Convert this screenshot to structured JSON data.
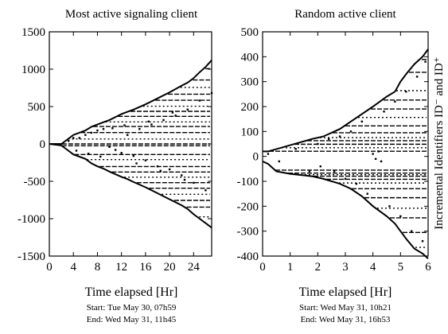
{
  "figure": {
    "right_axis_label": "Incremental Identifiers ID⁻ and ID⁺"
  },
  "chart_data": [
    {
      "type": "scatter",
      "title": "Most active signaling client",
      "xlabel": "Time elapsed [Hr]",
      "ylabel": "",
      "xlim": [
        0,
        27
      ],
      "ylim": [
        -1500,
        1500
      ],
      "xticks": [
        0,
        4,
        8,
        12,
        16,
        20,
        24
      ],
      "yticks": [
        -1500,
        -1000,
        -500,
        0,
        500,
        1000,
        1500
      ],
      "start_text": "Start: Tue May 30, 07h59",
      "end_text": "End: Wed May 31, 11h45",
      "upper_envelope": [
        [
          0,
          0
        ],
        [
          2,
          0
        ],
        [
          3,
          60
        ],
        [
          4,
          120
        ],
        [
          6,
          180
        ],
        [
          7,
          230
        ],
        [
          8,
          260
        ],
        [
          9,
          290
        ],
        [
          10,
          320
        ],
        [
          12,
          400
        ],
        [
          13,
          430
        ],
        [
          14,
          460
        ],
        [
          16,
          530
        ],
        [
          18,
          610
        ],
        [
          20,
          690
        ],
        [
          22,
          780
        ],
        [
          23,
          820
        ],
        [
          24,
          880
        ],
        [
          25,
          960
        ],
        [
          26,
          1030
        ],
        [
          27,
          1120
        ]
      ],
      "lower_envelope": [
        [
          0,
          0
        ],
        [
          2,
          -20
        ],
        [
          3,
          -80
        ],
        [
          4,
          -140
        ],
        [
          6,
          -200
        ],
        [
          7,
          -260
        ],
        [
          8,
          -300
        ],
        [
          9,
          -330
        ],
        [
          10,
          -370
        ],
        [
          12,
          -440
        ],
        [
          13,
          -470
        ],
        [
          14,
          -510
        ],
        [
          16,
          -580
        ],
        [
          18,
          -660
        ],
        [
          20,
          -740
        ],
        [
          22,
          -820
        ],
        [
          23,
          -870
        ],
        [
          24,
          -940
        ],
        [
          25,
          -1000
        ],
        [
          26,
          -1060
        ],
        [
          27,
          -1120
        ]
      ],
      "series": [
        {
          "points": [
            [
              3.2,
              40
            ],
            [
              4,
              80
            ],
            [
              5,
              80
            ],
            [
              6,
              120
            ],
            [
              7,
              150
            ],
            [
              8,
              180
            ],
            [
              9,
              200
            ],
            [
              10,
              -40
            ],
            [
              11,
              -80
            ],
            [
              12,
              -120
            ],
            [
              13,
              120
            ],
            [
              14,
              -160
            ],
            [
              15,
              200
            ],
            [
              16,
              -220
            ],
            [
              17,
              260
            ],
            [
              18,
              -300
            ],
            [
              19,
              320
            ],
            [
              20,
              -340
            ],
            [
              21,
              380
            ],
            [
              22,
              -420
            ],
            [
              23,
              460
            ],
            [
              24,
              -520
            ],
            [
              25,
              580
            ],
            [
              26,
              -620
            ],
            [
              27,
              680
            ],
            [
              4.5,
              -90
            ],
            [
              6.5,
              -130
            ],
            [
              8.5,
              -170
            ],
            [
              10.5,
              210
            ],
            [
              12.5,
              250
            ],
            [
              14.5,
              -260
            ],
            [
              16.5,
              300
            ],
            [
              18.5,
              -360
            ],
            [
              20.5,
              420
            ],
            [
              22.5,
              -480
            ]
          ]
        }
      ]
    },
    {
      "type": "scatter",
      "title": "Random active client",
      "xlabel": "Time elapsed [Hr]",
      "ylabel": "",
      "xlim": [
        0,
        6
      ],
      "ylim": [
        -400,
        500
      ],
      "xticks": [
        0,
        1,
        2,
        3,
        4,
        5,
        6
      ],
      "yticks": [
        -400,
        -300,
        -200,
        -100,
        0,
        100,
        200,
        300,
        400,
        500
      ],
      "start_text": "Start: Wed May 31, 10h21",
      "end_text": "End: Wed May 31, 16h53",
      "upper_envelope": [
        [
          0,
          20
        ],
        [
          0.2,
          20
        ],
        [
          1.8,
          70
        ],
        [
          2.2,
          80
        ],
        [
          2.8,
          110
        ],
        [
          3.2,
          140
        ],
        [
          3.6,
          170
        ],
        [
          4.0,
          200
        ],
        [
          4.5,
          240
        ],
        [
          4.8,
          260
        ],
        [
          5.0,
          300
        ],
        [
          5.2,
          330
        ],
        [
          5.5,
          370
        ],
        [
          5.8,
          400
        ],
        [
          6.0,
          430
        ]
      ],
      "lower_envelope": [
        [
          0,
          -20
        ],
        [
          0.2,
          -30
        ],
        [
          0.5,
          -60
        ],
        [
          1.0,
          -70
        ],
        [
          1.8,
          -80
        ],
        [
          2.2,
          -90
        ],
        [
          2.8,
          -110
        ],
        [
          3.2,
          -130
        ],
        [
          3.6,
          -160
        ],
        [
          4.0,
          -200
        ],
        [
          4.5,
          -240
        ],
        [
          4.8,
          -270
        ],
        [
          5.0,
          -300
        ],
        [
          5.2,
          -330
        ],
        [
          5.5,
          -370
        ],
        [
          5.8,
          -390
        ],
        [
          6.0,
          -410
        ]
      ],
      "series": [
        {
          "points": [
            [
              0.2,
              10
            ],
            [
              0.6,
              -20
            ],
            [
              1.2,
              30
            ],
            [
              1.7,
              -60
            ],
            [
              2.0,
              50
            ],
            [
              2.1,
              -40
            ],
            [
              2.4,
              70
            ],
            [
              2.6,
              -60
            ],
            [
              2.8,
              80
            ],
            [
              3.0,
              -90
            ],
            [
              3.2,
              100
            ],
            [
              3.4,
              -110
            ],
            [
              3.6,
              140
            ],
            [
              3.8,
              -150
            ],
            [
              4.0,
              10
            ],
            [
              4.1,
              -10
            ],
            [
              4.2,
              20
            ],
            [
              4.3,
              -20
            ],
            [
              4.4,
              180
            ],
            [
              4.6,
              -200
            ],
            [
              4.8,
              220
            ],
            [
              5.0,
              -240
            ],
            [
              5.2,
              260
            ],
            [
              5.4,
              -300
            ],
            [
              5.6,
              320
            ],
            [
              5.8,
              -340
            ],
            [
              5.9,
              380
            ]
          ]
        }
      ]
    }
  ]
}
